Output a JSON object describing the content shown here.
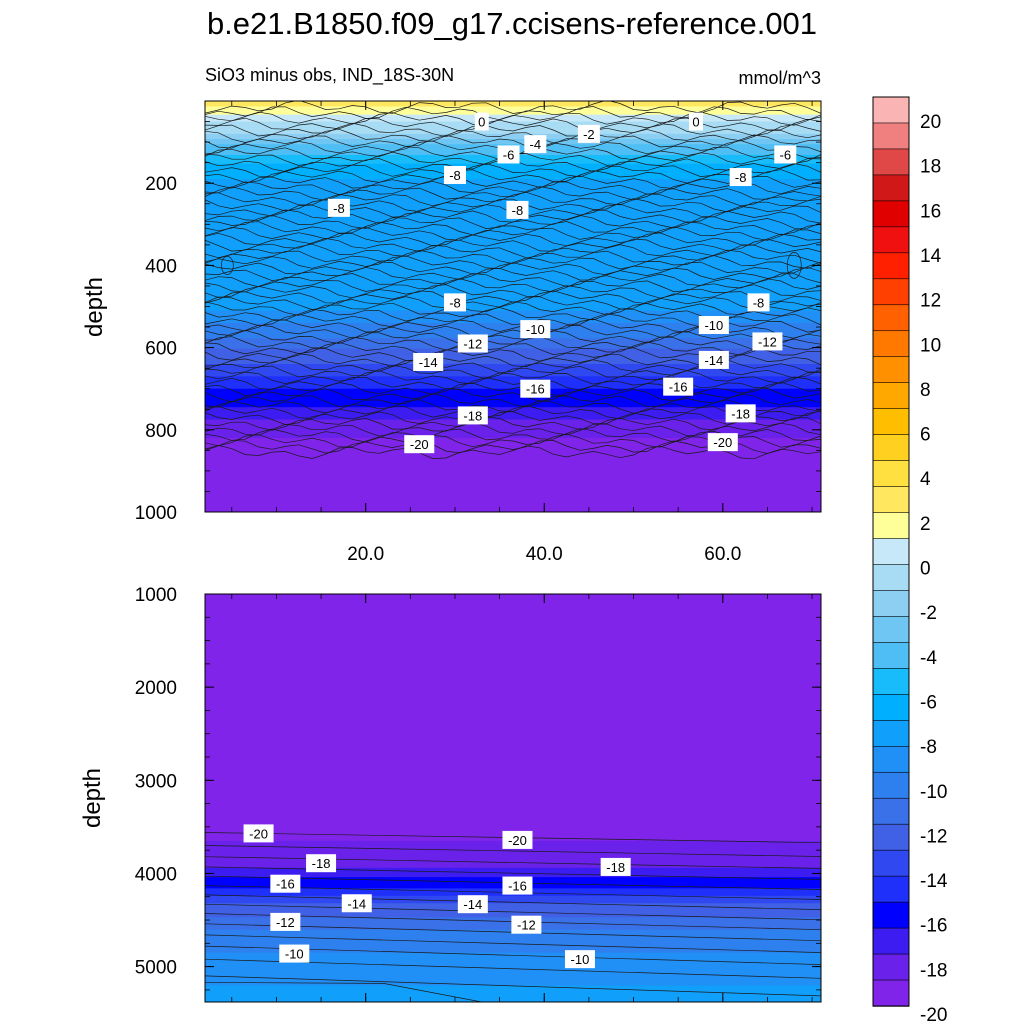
{
  "chart_data": {
    "type": "contour",
    "title": "b.e21.B1850.f09_g17.ccisens-reference.001",
    "subtitle_left": "SiO3 minus obs, IND_18S-30N",
    "subtitle_right": "mmol/m^3",
    "xlabel": "",
    "ylabel": "depth",
    "xlim": [
      2,
      71
    ],
    "x_ticks": [
      "20.0",
      "40.0",
      "60.0"
    ],
    "x_tick_values": [
      20,
      40,
      60
    ],
    "panels": [
      {
        "name": "upper",
        "ylim": [
          0,
          1000
        ],
        "y_ticks": [
          "200",
          "400",
          "600",
          "800",
          "1000"
        ],
        "y_tick_values": [
          200,
          400,
          600,
          800,
          1000
        ],
        "contour_depths": [
          {
            "level": 0,
            "depth": 40
          },
          {
            "level": -2,
            "depth": 80
          },
          {
            "level": -4,
            "depth": 105
          },
          {
            "level": -6,
            "depth": 140
          },
          {
            "level": -8,
            "depth": 190
          },
          {
            "level": -8,
            "depth": 480
          },
          {
            "level": -10,
            "depth": 540
          },
          {
            "level": -12,
            "depth": 590
          },
          {
            "level": -14,
            "depth": 640
          },
          {
            "level": -16,
            "depth": 700
          },
          {
            "level": -18,
            "depth": 760
          },
          {
            "level": -20,
            "depth": 820
          }
        ],
        "contour_labels": [
          {
            "text": "0",
            "x": 33,
            "depth": 50
          },
          {
            "text": "0",
            "x": 57,
            "depth": 50
          },
          {
            "text": "-2",
            "x": 45,
            "depth": 80
          },
          {
            "text": "-4",
            "x": 39,
            "depth": 105
          },
          {
            "text": "-6",
            "x": 36,
            "depth": 130
          },
          {
            "text": "-6",
            "x": 67,
            "depth": 130
          },
          {
            "text": "-8",
            "x": 30,
            "depth": 180
          },
          {
            "text": "-8",
            "x": 62,
            "depth": 185
          },
          {
            "text": "-8",
            "x": 17,
            "depth": 260
          },
          {
            "text": "-8",
            "x": 37,
            "depth": 265
          },
          {
            "text": "-8",
            "x": 30,
            "depth": 490
          },
          {
            "text": "-8",
            "x": 64,
            "depth": 490
          },
          {
            "text": "-10",
            "x": 39,
            "depth": 555
          },
          {
            "text": "-10",
            "x": 59,
            "depth": 545
          },
          {
            "text": "-12",
            "x": 32,
            "depth": 590
          },
          {
            "text": "-12",
            "x": 65,
            "depth": 585
          },
          {
            "text": "-14",
            "x": 27,
            "depth": 635
          },
          {
            "text": "-14",
            "x": 59,
            "depth": 630
          },
          {
            "text": "-16",
            "x": 39,
            "depth": 700
          },
          {
            "text": "-16",
            "x": 55,
            "depth": 695
          },
          {
            "text": "-18",
            "x": 32,
            "depth": 765
          },
          {
            "text": "-18",
            "x": 62,
            "depth": 760
          },
          {
            "text": "-20",
            "x": 26,
            "depth": 835
          },
          {
            "text": "-20",
            "x": 60,
            "depth": 830
          }
        ]
      },
      {
        "name": "lower",
        "ylim": [
          1000,
          5380
        ],
        "y_ticks": [
          "1000",
          "2000",
          "3000",
          "4000",
          "5000"
        ],
        "y_tick_values": [
          1000,
          2000,
          3000,
          4000,
          5000
        ],
        "contour_labels": [
          {
            "text": "-20",
            "x": 8,
            "depth": 3570
          },
          {
            "text": "-20",
            "x": 37,
            "depth": 3640
          },
          {
            "text": "-18",
            "x": 15,
            "depth": 3890
          },
          {
            "text": "-18",
            "x": 48,
            "depth": 3930
          },
          {
            "text": "-16",
            "x": 11,
            "depth": 4110
          },
          {
            "text": "-16",
            "x": 37,
            "depth": 4130
          },
          {
            "text": "-14",
            "x": 19,
            "depth": 4320
          },
          {
            "text": "-14",
            "x": 32,
            "depth": 4330
          },
          {
            "text": "-12",
            "x": 11,
            "depth": 4520
          },
          {
            "text": "-12",
            "x": 38,
            "depth": 4550
          },
          {
            "text": "-10",
            "x": 12,
            "depth": 4860
          },
          {
            "text": "-10",
            "x": 44,
            "depth": 4920
          }
        ]
      }
    ],
    "colorbar": {
      "labels": [
        "20",
        "18",
        "16",
        "14",
        "12",
        "10",
        "8",
        "6",
        "4",
        "2",
        "0",
        "-2",
        "-4",
        "-6",
        "-8",
        "-10",
        "-12",
        "-14",
        "-16",
        "-18",
        "-20"
      ],
      "colors": [
        "#fbb4b4",
        "#f08080",
        "#e04848",
        "#d01818",
        "#e00000",
        "#f01010",
        "#ff2000",
        "#ff4000",
        "#ff6000",
        "#ff7800",
        "#ff9000",
        "#ffa800",
        "#ffbe00",
        "#ffd020",
        "#ffe040",
        "#ffe860",
        "#ffff99",
        "#c6e8f8",
        "#a7dcf4",
        "#8ccff2",
        "#6fc6f3",
        "#4fbef5",
        "#18bcfa",
        "#00b0ff",
        "#10a0fb",
        "#2090f6",
        "#2e80ef",
        "#3a70e8",
        "#4060e6",
        "#3048f0",
        "#1e30fa",
        "#0000ff",
        "#3c1cf0",
        "#6a22ea",
        "#8024e9"
      ]
    }
  }
}
